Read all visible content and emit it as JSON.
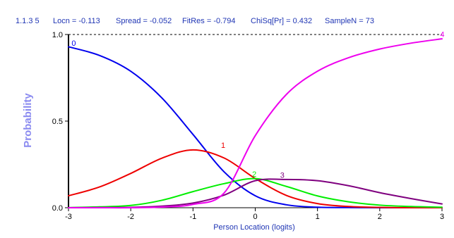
{
  "header": {
    "item_id": "1.1.3  5",
    "locn": "Locn = -0.113",
    "spread": "Spread = -0.052",
    "fitres": "FitRes = -0.794",
    "chisq": "ChiSq[Pr] = 0.432",
    "samplen": "SampleN = 73",
    "color": "#1f35b4"
  },
  "chart_data": {
    "type": "line",
    "title": "",
    "xlabel": "Person Location (logits)",
    "ylabel": "Probability",
    "xlim": [
      -3,
      3
    ],
    "ylim": [
      0,
      1
    ],
    "x_ticks": [
      -3,
      -2,
      -1,
      0,
      1,
      2,
      3
    ],
    "x_tick_labels": [
      "-3",
      "-2",
      "-1",
      "0",
      "1",
      "2",
      "3"
    ],
    "y_ticks": [
      0,
      0.5,
      1
    ],
    "y_tick_labels": [
      "0.0",
      "0.5",
      "1.0"
    ],
    "grid": false,
    "reference_line": {
      "y": 1.0,
      "style": "dashed"
    },
    "xlabel_color": "#1f35b4",
    "ylabel_color": "#8a8af0",
    "x": [
      -3,
      -2.5,
      -2,
      -1.5,
      -1,
      -0.5,
      0,
      0.5,
      1,
      1.5,
      2,
      2.5,
      3
    ],
    "series": [
      {
        "name": "0",
        "color": "#0000ee",
        "values": [
          0.929,
          0.879,
          0.788,
          0.634,
          0.423,
          0.207,
          0.069,
          0.017,
          0.003,
          0.001,
          0,
          0,
          0
        ]
      },
      {
        "name": "1",
        "color": "#ee0000",
        "values": [
          0.069,
          0.12,
          0.198,
          0.286,
          0.334,
          0.287,
          0.169,
          0.071,
          0.024,
          0.007,
          0.002,
          0,
          0
        ]
      },
      {
        "name": "2",
        "color": "#00ee00",
        "values": [
          0.001,
          0.005,
          0.013,
          0.043,
          0.093,
          0.139,
          0.168,
          0.123,
          0.068,
          0.034,
          0.015,
          0.007,
          0.003
        ]
      },
      {
        "name": "3",
        "color": "#7f007f",
        "values": [
          0,
          0.001,
          0.002,
          0.009,
          0.027,
          0.073,
          0.156,
          0.163,
          0.156,
          0.127,
          0.087,
          0.053,
          0.022
        ]
      },
      {
        "name": "4",
        "color": "#ee00ee",
        "values": [
          0,
          0,
          0,
          0.004,
          0.019,
          0.085,
          0.416,
          0.654,
          0.788,
          0.866,
          0.916,
          0.95,
          0.975
        ]
      }
    ],
    "curve_label_positions": [
      {
        "name": "0",
        "x": -2.95,
        "y": 0.935
      },
      {
        "name": "1",
        "x": -0.55,
        "y": 0.345
      },
      {
        "name": "2",
        "x": -0.05,
        "y": 0.178
      },
      {
        "name": "3",
        "x": 0.4,
        "y": 0.172
      },
      {
        "name": "4",
        "x": 2.97,
        "y": 0.985
      }
    ]
  }
}
